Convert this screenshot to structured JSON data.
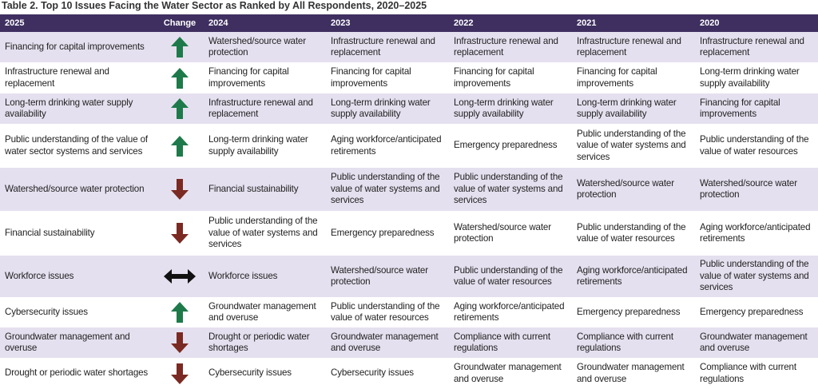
{
  "header": {
    "title": "Table 2. Top 10 Issues Facing the Water Sector as Ranked by All Respondents, 2020–2025"
  },
  "table": {
    "columns": [
      "2025",
      "Change",
      "2024",
      "2023",
      "2022",
      "2021",
      "2020"
    ],
    "rows": [
      {
        "change": "up",
        "cells": [
          "Financing for capital improvements",
          "Watershed/source water protection",
          "Infrastructure renewal and replacement",
          "Infrastructure renewal and replacement",
          "Infrastructure renewal and replacement",
          "Infrastructure renewal and replacement"
        ]
      },
      {
        "change": "up",
        "cells": [
          "Infrastructure renewal and replacement",
          "Financing for capital improvements",
          "Financing for capital improvements",
          "Financing for capital improvements",
          "Financing for capital improvements",
          "Long-term drinking water supply availability"
        ]
      },
      {
        "change": "up",
        "cells": [
          "Long-term drinking water supply availability",
          "Infrastructure renewal and replacement",
          "Long-term drinking water supply availability",
          "Long-term drinking water supply availability",
          "Long-term drinking water supply availability",
          "Financing for capital improvements"
        ]
      },
      {
        "change": "up",
        "cells": [
          "Public understanding of the value of water sector systems and services",
          "Long-term drinking water supply availability",
          "Aging workforce/anticipated retirements",
          "Emergency preparedness",
          "Public understanding of the value of water systems and services",
          "Public understanding of the value of water resources"
        ]
      },
      {
        "change": "down",
        "cells": [
          "Watershed/source water protection",
          "Financial sustainability",
          "Public understanding of the value of water systems and services",
          "Public understanding of the value of water systems and services",
          "Watershed/source water protection",
          "Watershed/source water protection"
        ]
      },
      {
        "change": "down",
        "cells": [
          "Financial sustainability",
          "Public understanding of the value of water systems and services",
          "Emergency preparedness",
          "Watershed/source water protection",
          "Public understanding of the value of water resources",
          "Aging workforce/anticipated retirements"
        ]
      },
      {
        "change": "both",
        "cells": [
          "Workforce issues",
          "Workforce issues",
          "Watershed/source water protection",
          "Public understanding of the value of water resources",
          "Aging workforce/anticipated retirements",
          "Public understanding of the value of water systems and services"
        ]
      },
      {
        "change": "up",
        "cells": [
          "Cybersecurity issues",
          "Groundwater management and overuse",
          "Public understanding of the value of water resources",
          "Aging workforce/anticipated retirements",
          "Emergency preparedness",
          "Emergency preparedness"
        ]
      },
      {
        "change": "down",
        "cells": [
          "Groundwater management and overuse",
          "Drought or periodic water shortages",
          "Groundwater management and overuse",
          "Compliance with current regulations",
          "Compliance with current regulations",
          "Groundwater management and overuse"
        ]
      },
      {
        "change": "down",
        "cells": [
          "Drought or periodic water shortages",
          "Cybersecurity issues",
          "Cybersecurity issues",
          "Groundwater management and overuse",
          "Groundwater management and overuse",
          "Compliance with current regulations"
        ]
      }
    ]
  }
}
